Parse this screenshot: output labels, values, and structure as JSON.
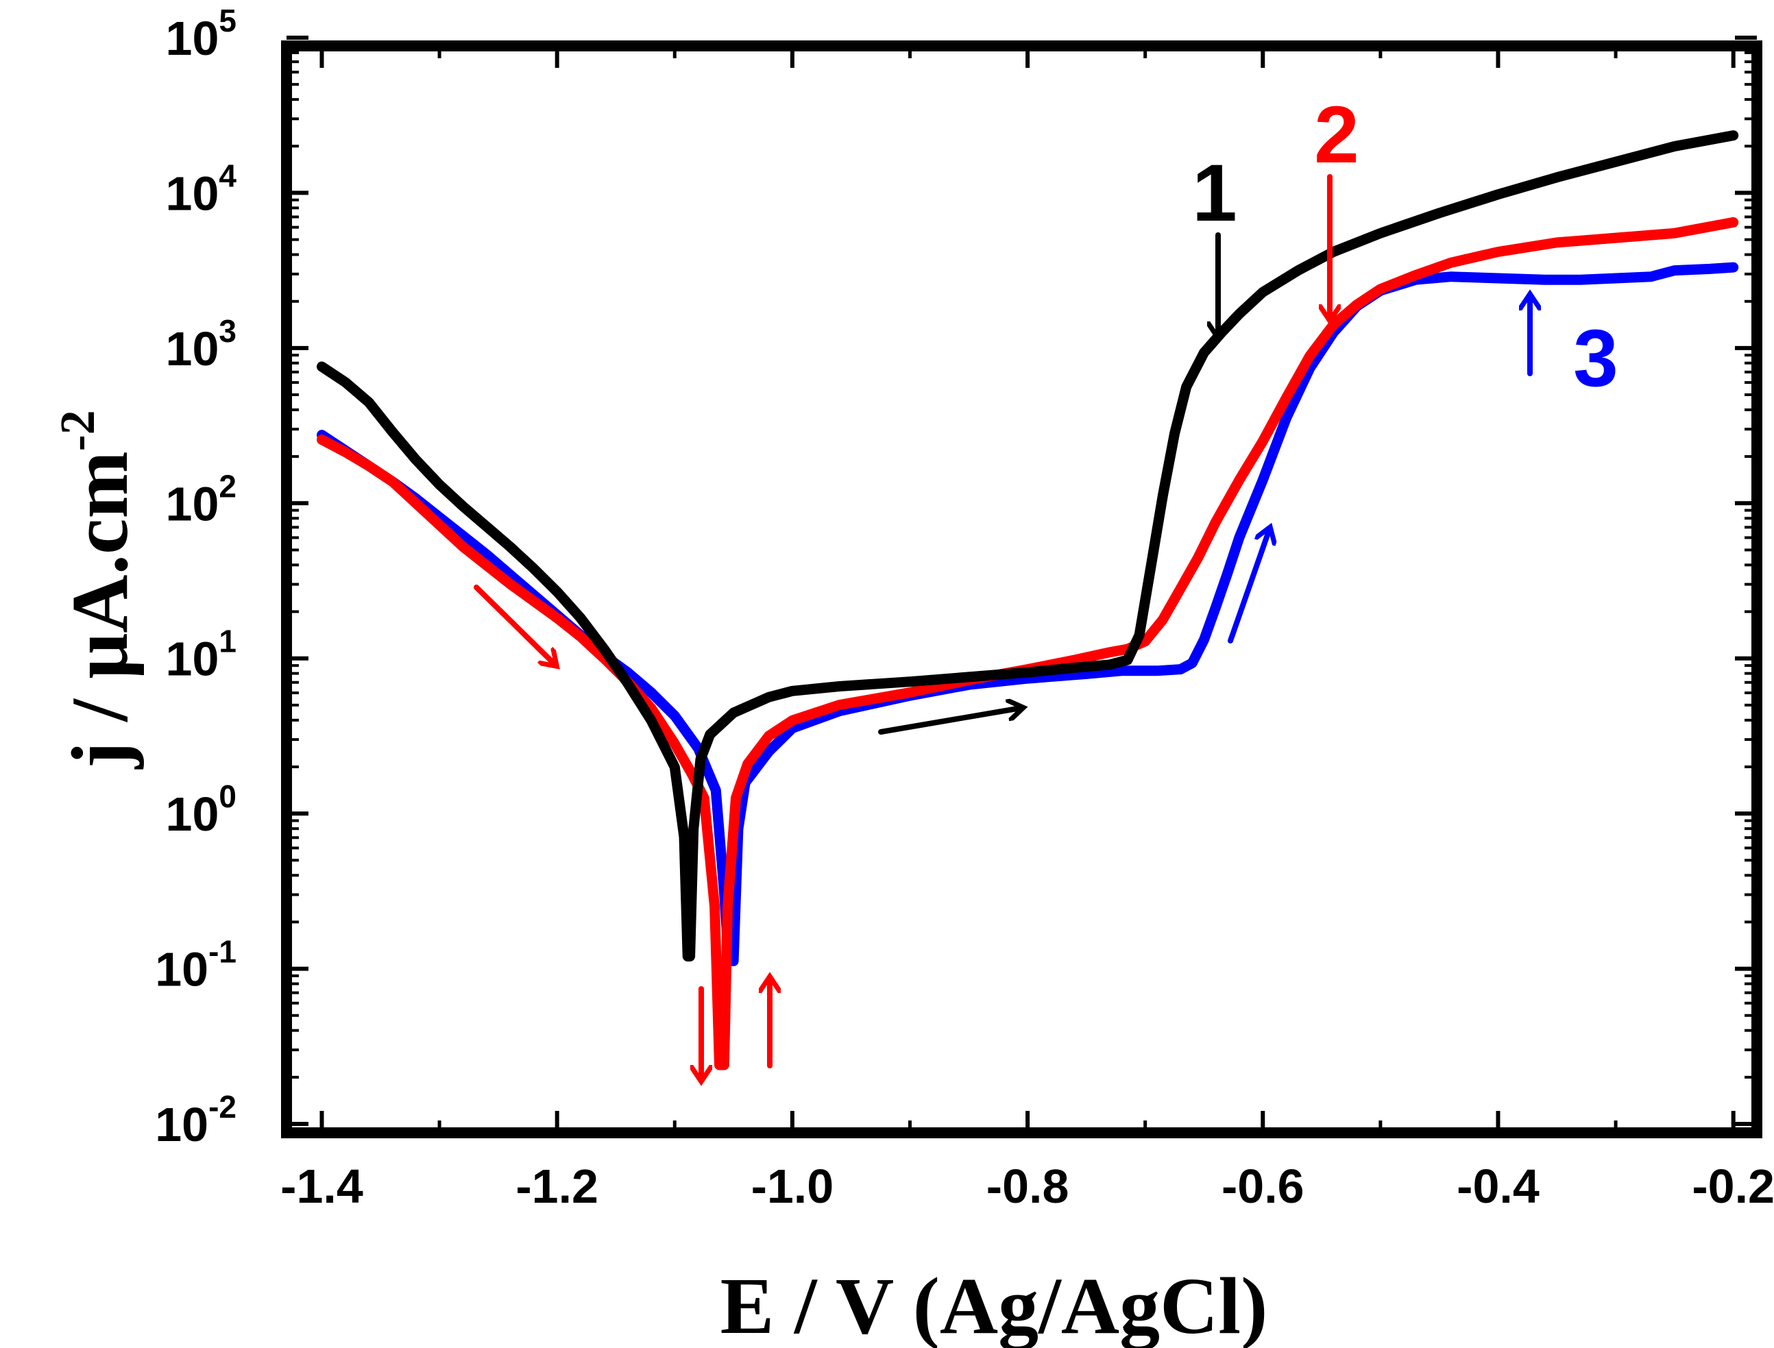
{
  "chart_data": {
    "type": "line",
    "title": "",
    "xlabel": "E / V (Ag/AgCl)",
    "ylabel": "j / μA.cm",
    "ylabel_exponent": "-2",
    "xlim": [
      -1.43,
      -0.18
    ],
    "ylim_log10": [
      -2,
      5
    ],
    "yscale": "log",
    "grid": false,
    "x_ticks": [
      {
        "value": -1.4,
        "label": "-1.4"
      },
      {
        "value": -1.2,
        "label": "-1.2"
      },
      {
        "value": -1.0,
        "label": "-1.0"
      },
      {
        "value": -0.8,
        "label": "-0.8"
      },
      {
        "value": -0.6,
        "label": "-0.6"
      },
      {
        "value": -0.4,
        "label": "-0.4"
      },
      {
        "value": -0.2,
        "label": "-0.2"
      }
    ],
    "y_ticks": [
      {
        "log": -2,
        "base": "10",
        "exp": "-2"
      },
      {
        "log": -1,
        "base": "10",
        "exp": "-1"
      },
      {
        "log": 0,
        "base": "10",
        "exp": "0"
      },
      {
        "log": 1,
        "base": "10",
        "exp": "1"
      },
      {
        "log": 2,
        "base": "10",
        "exp": "2"
      },
      {
        "log": 3,
        "base": "10",
        "exp": "3"
      },
      {
        "log": 4,
        "base": "10",
        "exp": "4"
      },
      {
        "log": 5,
        "base": "10",
        "exp": "5"
      }
    ],
    "series": [
      {
        "name": "1",
        "color": "#000000",
        "label": "1",
        "points": [
          [
            -1.4,
            2.88
          ],
          [
            -1.38,
            2.78
          ],
          [
            -1.36,
            2.65
          ],
          [
            -1.34,
            2.46
          ],
          [
            -1.32,
            2.28
          ],
          [
            -1.3,
            2.12
          ],
          [
            -1.28,
            1.98
          ],
          [
            -1.26,
            1.85
          ],
          [
            -1.24,
            1.72
          ],
          [
            -1.22,
            1.58
          ],
          [
            -1.2,
            1.43
          ],
          [
            -1.18,
            1.26
          ],
          [
            -1.16,
            1.06
          ],
          [
            -1.14,
            0.84
          ],
          [
            -1.12,
            0.6
          ],
          [
            -1.1,
            0.3
          ],
          [
            -1.092,
            -0.15
          ],
          [
            -1.089,
            -0.92
          ],
          [
            -1.087,
            -0.92
          ],
          [
            -1.084,
            -0.1
          ],
          [
            -1.078,
            0.35
          ],
          [
            -1.07,
            0.51
          ],
          [
            -1.05,
            0.65
          ],
          [
            -1.02,
            0.75
          ],
          [
            -1.0,
            0.79
          ],
          [
            -0.96,
            0.82
          ],
          [
            -0.9,
            0.85
          ],
          [
            -0.85,
            0.88
          ],
          [
            -0.8,
            0.91
          ],
          [
            -0.76,
            0.94
          ],
          [
            -0.73,
            0.96
          ],
          [
            -0.715,
            0.99
          ],
          [
            -0.705,
            1.15
          ],
          [
            -0.695,
            1.6
          ],
          [
            -0.685,
            2.05
          ],
          [
            -0.675,
            2.45
          ],
          [
            -0.665,
            2.75
          ],
          [
            -0.65,
            2.97
          ],
          [
            -0.635,
            3.1
          ],
          [
            -0.62,
            3.22
          ],
          [
            -0.6,
            3.36
          ],
          [
            -0.57,
            3.5
          ],
          [
            -0.54,
            3.62
          ],
          [
            -0.5,
            3.74
          ],
          [
            -0.45,
            3.87
          ],
          [
            -0.4,
            3.99
          ],
          [
            -0.35,
            4.1
          ],
          [
            -0.3,
            4.2
          ],
          [
            -0.25,
            4.3
          ],
          [
            -0.2,
            4.37
          ]
        ]
      },
      {
        "name": "2",
        "color": "#ff0000",
        "label": "2",
        "points": [
          [
            -1.4,
            2.41
          ],
          [
            -1.38,
            2.33
          ],
          [
            -1.36,
            2.24
          ],
          [
            -1.34,
            2.14
          ],
          [
            -1.32,
            2.0
          ],
          [
            -1.3,
            1.86
          ],
          [
            -1.28,
            1.72
          ],
          [
            -1.26,
            1.6
          ],
          [
            -1.24,
            1.48
          ],
          [
            -1.22,
            1.37
          ],
          [
            -1.2,
            1.26
          ],
          [
            -1.18,
            1.14
          ],
          [
            -1.16,
            1.0
          ],
          [
            -1.14,
            0.85
          ],
          [
            -1.12,
            0.68
          ],
          [
            -1.1,
            0.45
          ],
          [
            -1.085,
            0.25
          ],
          [
            -1.075,
            0.1
          ],
          [
            -1.066,
            -0.6
          ],
          [
            -1.062,
            -1.62
          ],
          [
            -1.058,
            -1.62
          ],
          [
            -1.055,
            -0.6
          ],
          [
            -1.048,
            0.1
          ],
          [
            -1.038,
            0.32
          ],
          [
            -1.02,
            0.5
          ],
          [
            -1.0,
            0.6
          ],
          [
            -0.96,
            0.7
          ],
          [
            -0.9,
            0.78
          ],
          [
            -0.85,
            0.86
          ],
          [
            -0.8,
            0.93
          ],
          [
            -0.76,
            0.99
          ],
          [
            -0.73,
            1.04
          ],
          [
            -0.715,
            1.06
          ],
          [
            -0.7,
            1.11
          ],
          [
            -0.685,
            1.25
          ],
          [
            -0.67,
            1.45
          ],
          [
            -0.655,
            1.65
          ],
          [
            -0.64,
            1.88
          ],
          [
            -0.62,
            2.15
          ],
          [
            -0.6,
            2.4
          ],
          [
            -0.58,
            2.68
          ],
          [
            -0.56,
            2.95
          ],
          [
            -0.54,
            3.15
          ],
          [
            -0.52,
            3.28
          ],
          [
            -0.5,
            3.38
          ],
          [
            -0.47,
            3.47
          ],
          [
            -0.44,
            3.55
          ],
          [
            -0.4,
            3.62
          ],
          [
            -0.35,
            3.68
          ],
          [
            -0.3,
            3.71
          ],
          [
            -0.25,
            3.74
          ],
          [
            -0.2,
            3.81
          ]
        ]
      },
      {
        "name": "3",
        "color": "#0000ff",
        "label": "3",
        "points": [
          [
            -1.4,
            2.44
          ],
          [
            -1.38,
            2.34
          ],
          [
            -1.36,
            2.24
          ],
          [
            -1.34,
            2.14
          ],
          [
            -1.32,
            2.03
          ],
          [
            -1.3,
            1.91
          ],
          [
            -1.28,
            1.79
          ],
          [
            -1.26,
            1.67
          ],
          [
            -1.24,
            1.54
          ],
          [
            -1.22,
            1.41
          ],
          [
            -1.2,
            1.28
          ],
          [
            -1.18,
            1.15
          ],
          [
            -1.16,
            1.02
          ],
          [
            -1.14,
            0.91
          ],
          [
            -1.12,
            0.78
          ],
          [
            -1.1,
            0.63
          ],
          [
            -1.08,
            0.42
          ],
          [
            -1.065,
            0.15
          ],
          [
            -1.058,
            -0.5
          ],
          [
            -1.054,
            -0.95
          ],
          [
            -1.05,
            -0.95
          ],
          [
            -1.046,
            -0.1
          ],
          [
            -1.04,
            0.2
          ],
          [
            -1.02,
            0.4
          ],
          [
            -1.0,
            0.55
          ],
          [
            -0.96,
            0.66
          ],
          [
            -0.9,
            0.76
          ],
          [
            -0.85,
            0.83
          ],
          [
            -0.8,
            0.87
          ],
          [
            -0.75,
            0.9
          ],
          [
            -0.72,
            0.92
          ],
          [
            -0.69,
            0.92
          ],
          [
            -0.67,
            0.93
          ],
          [
            -0.66,
            0.97
          ],
          [
            -0.65,
            1.12
          ],
          [
            -0.64,
            1.33
          ],
          [
            -0.63,
            1.55
          ],
          [
            -0.62,
            1.78
          ],
          [
            -0.6,
            2.15
          ],
          [
            -0.58,
            2.55
          ],
          [
            -0.56,
            2.87
          ],
          [
            -0.54,
            3.1
          ],
          [
            -0.52,
            3.27
          ],
          [
            -0.5,
            3.37
          ],
          [
            -0.47,
            3.44
          ],
          [
            -0.44,
            3.46
          ],
          [
            -0.4,
            3.45
          ],
          [
            -0.36,
            3.44
          ],
          [
            -0.33,
            3.44
          ],
          [
            -0.3,
            3.45
          ],
          [
            -0.27,
            3.46
          ],
          [
            -0.25,
            3.5
          ],
          [
            -0.22,
            3.51
          ],
          [
            -0.2,
            3.52
          ]
        ]
      }
    ]
  }
}
